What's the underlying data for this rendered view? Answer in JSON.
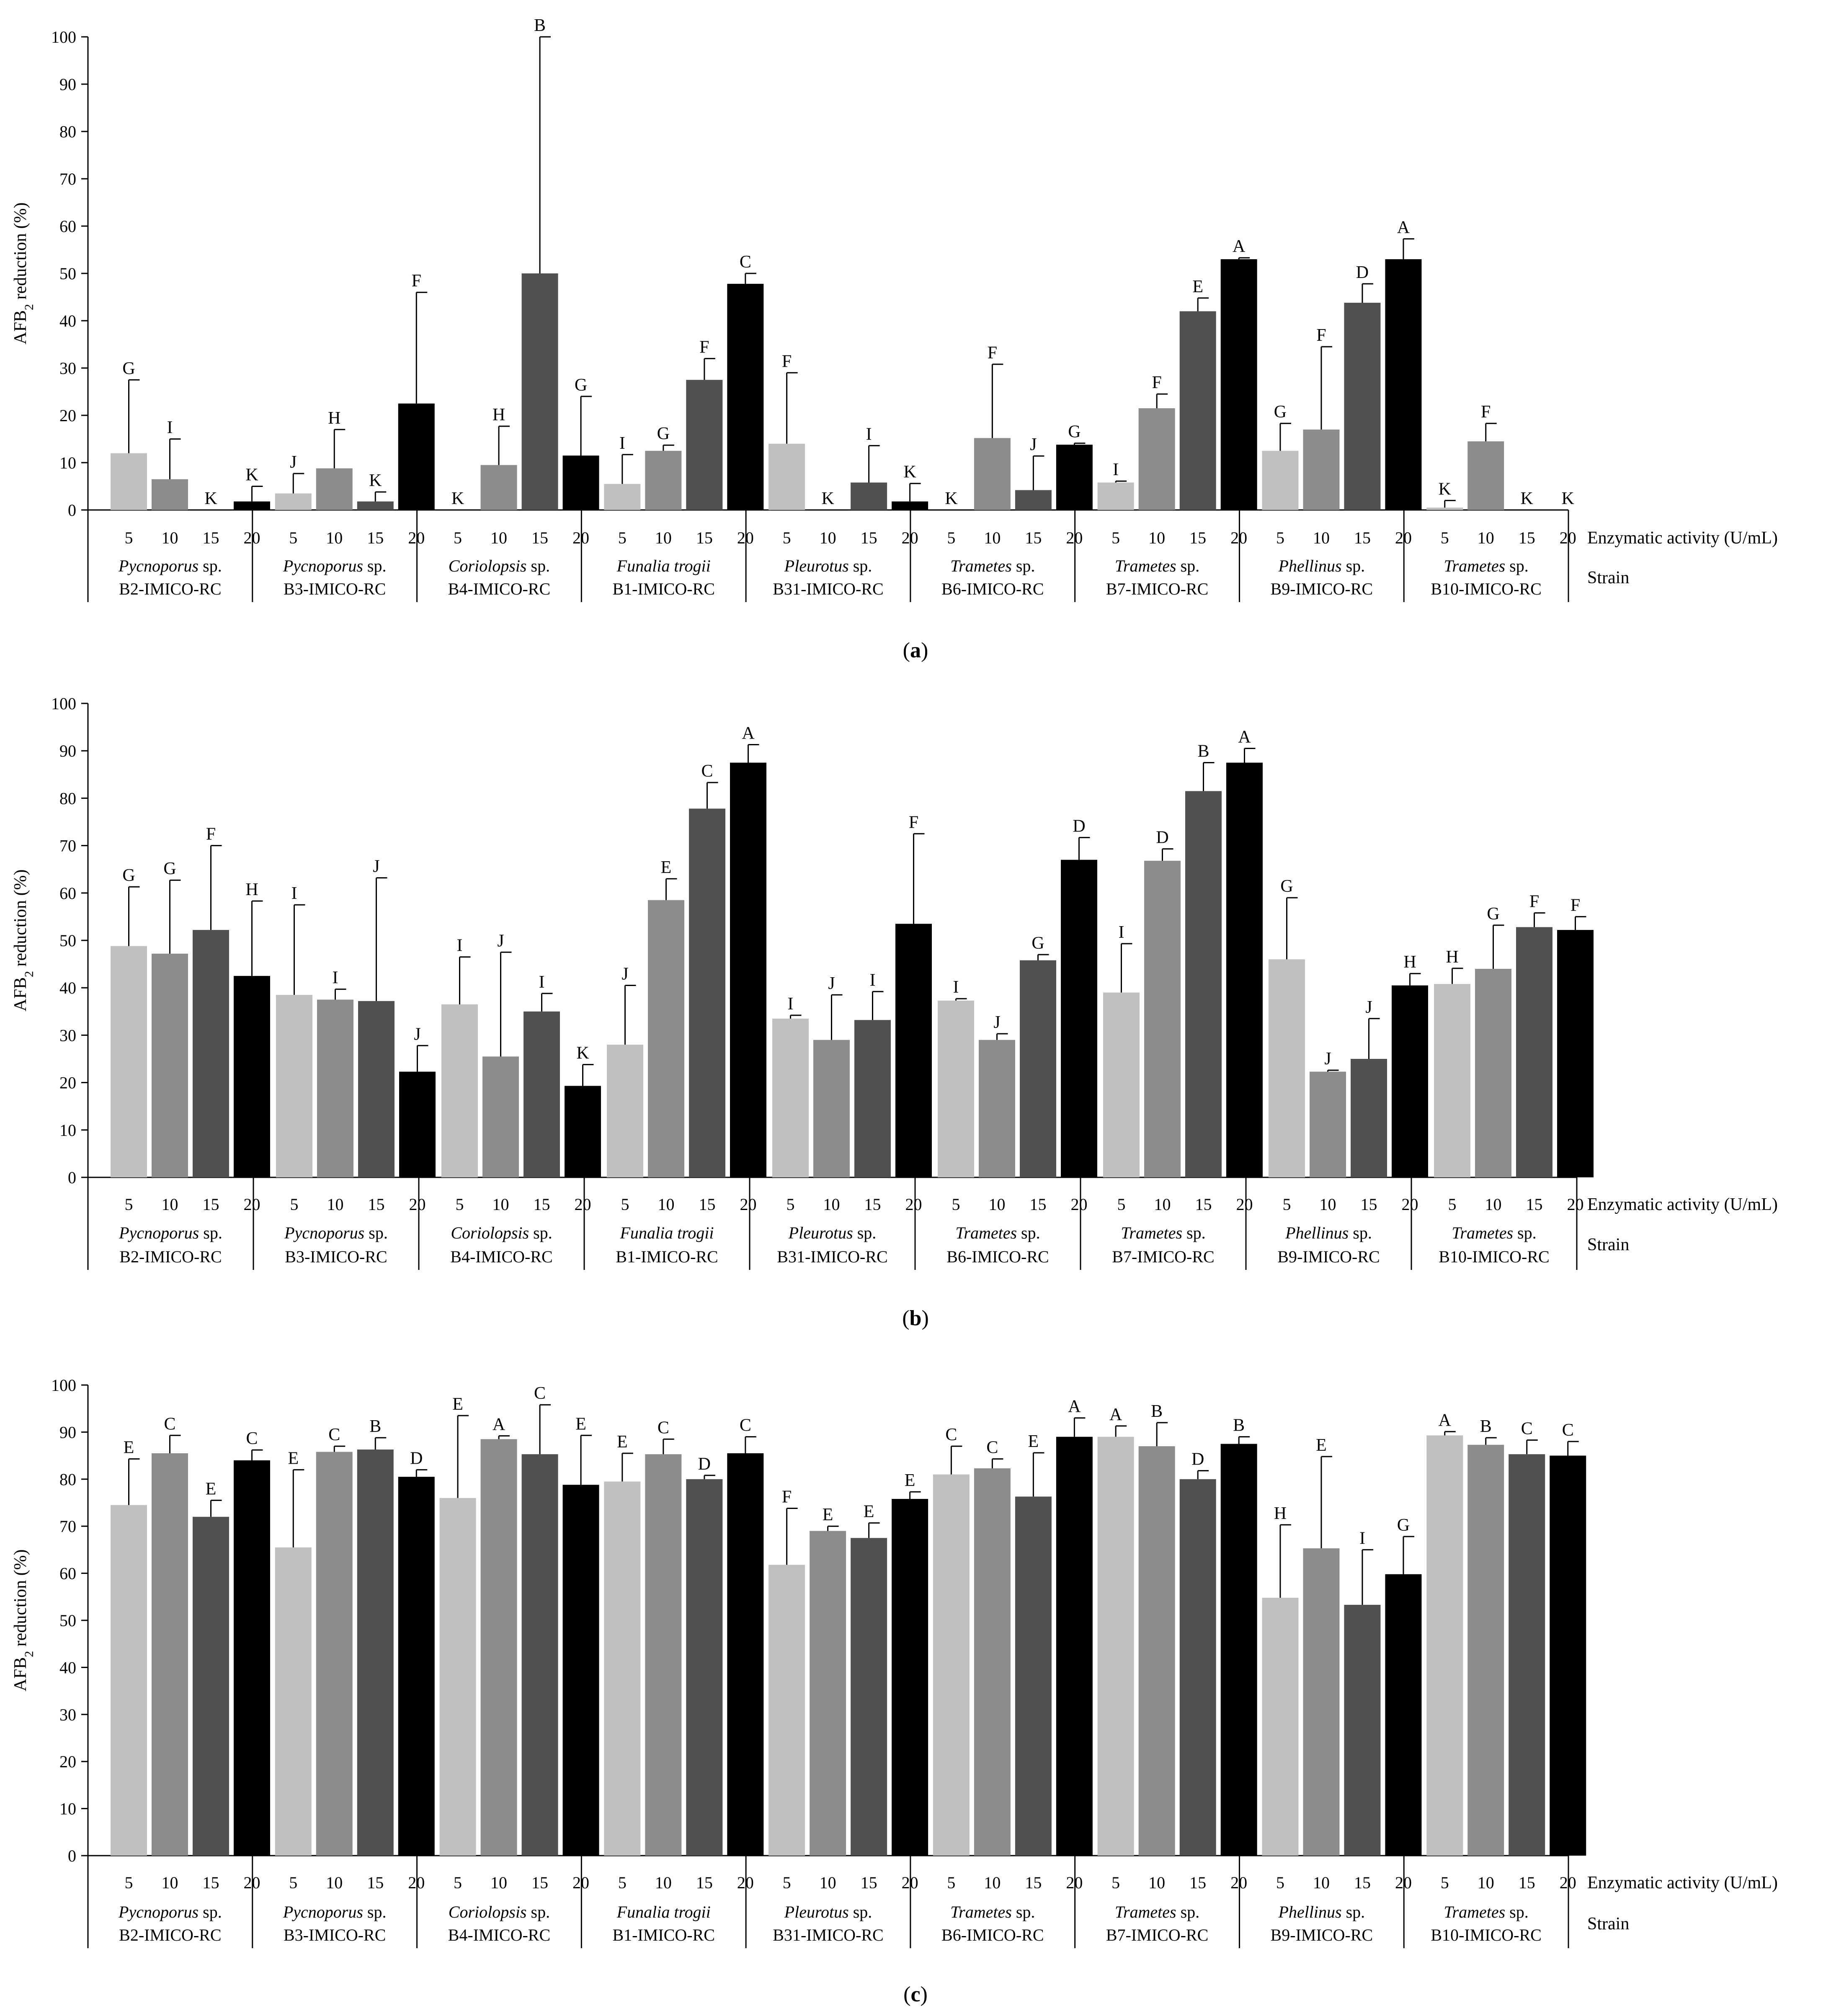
{
  "shared": {
    "concentrations": [
      "5",
      "10",
      "15",
      "20"
    ],
    "strains": [
      {
        "genus": "Pycnoporus",
        "suffix": " sp.",
        "italic_only": false,
        "code": "B2-IMICO-RC"
      },
      {
        "genus": "Pycnoporus",
        "suffix": " sp.",
        "italic_only": false,
        "code": "B3-IMICO-RC"
      },
      {
        "genus": "Coriolopsis",
        "suffix": " sp.",
        "italic_only": false,
        "code": "B4-IMICO-RC"
      },
      {
        "genus": "Funalia trogii",
        "suffix": "",
        "italic_only": true,
        "code": "B1-IMICO-RC"
      },
      {
        "genus": "Pleurotus",
        "suffix": " sp.",
        "italic_only": false,
        "code": "B31-IMICO-RC"
      },
      {
        "genus": "Trametes",
        "suffix": " sp.",
        "italic_only": false,
        "code": "B6-IMICO-RC"
      },
      {
        "genus": "Trametes",
        "suffix": " sp.",
        "italic_only": false,
        "code": "B7-IMICO-RC"
      },
      {
        "genus": "Phellinus",
        "suffix": " sp.",
        "italic_only": false,
        "code": "B9-IMICO-RC"
      },
      {
        "genus": "Trametes",
        "suffix": " sp.",
        "italic_only": false,
        "code": "B10-IMICO-RC"
      }
    ],
    "x_axis_label": "Enzymatic activity (U/mL)",
    "strain_axis_label": "Strain",
    "y_label_prefix": "AFB",
    "y_label_sub": "2",
    "y_label_suffix": " reduction (%)",
    "y_ticks": [
      0,
      10,
      20,
      30,
      40,
      50,
      60,
      70,
      80,
      90,
      100
    ],
    "bar_colors": {
      "5": "#c0c0c0",
      "10": "#8c8c8c",
      "15": "#505050",
      "20": "#000000"
    }
  },
  "chart_data": [
    {
      "type": "bar",
      "panel": "(a)",
      "ylim": [
        0,
        100
      ],
      "ylabel": "AFB2 reduction (%)",
      "xlabel": "Enzymatic activity (U/mL)",
      "values": [
        [
          12,
          6.5,
          0,
          1.8
        ],
        [
          3.5,
          8.8,
          1.8,
          22.5
        ],
        [
          0,
          9.5,
          50,
          11.5
        ],
        [
          5.5,
          12.5,
          27.5,
          47.8
        ],
        [
          14,
          0,
          5.8,
          1.8
        ],
        [
          0,
          15.2,
          4.2,
          13.8
        ],
        [
          5.8,
          21.5,
          42,
          53
        ],
        [
          12.5,
          17,
          43.8,
          53
        ],
        [
          0.5,
          14.5,
          0,
          0
        ]
      ],
      "errors": [
        [
          15.5,
          8.5,
          0,
          3.2
        ],
        [
          4.2,
          8.2,
          2,
          23.5
        ],
        [
          0,
          8.2,
          50,
          12.5
        ],
        [
          6.2,
          1.2,
          4.5,
          2.2
        ],
        [
          15,
          0,
          7.8,
          3.8
        ],
        [
          0,
          15.6,
          7.2,
          0.3
        ],
        [
          0.3,
          3,
          2.8,
          0.3
        ],
        [
          5.8,
          17.5,
          4,
          4.3
        ],
        [
          1.5,
          3.8,
          0,
          0
        ]
      ],
      "letters": [
        [
          "G",
          "I",
          "K",
          "K"
        ],
        [
          "J",
          "H",
          "K",
          "F"
        ],
        [
          "K",
          "H",
          "B",
          "G"
        ],
        [
          "I",
          "G",
          "F",
          "C"
        ],
        [
          "F",
          "K",
          "I",
          "K"
        ],
        [
          "K",
          "F",
          "J",
          "G"
        ],
        [
          "I",
          "F",
          "E",
          "A"
        ],
        [
          "G",
          "F",
          "D",
          "A"
        ],
        [
          "K",
          "F",
          "K",
          "K"
        ]
      ]
    },
    {
      "type": "bar",
      "panel": "(b)",
      "ylim": [
        0,
        100
      ],
      "ylabel": "AFB2 reduction (%)",
      "xlabel": "Enzymatic activity (U/mL)",
      "values": [
        [
          48.8,
          47.2,
          52.2,
          42.5
        ],
        [
          38.5,
          37.5,
          37.2,
          22.3
        ],
        [
          36.5,
          25.5,
          35,
          19.3
        ],
        [
          28,
          58.5,
          77.8,
          87.5
        ],
        [
          33.5,
          29,
          33.2,
          53.5
        ],
        [
          37.3,
          29,
          45.8,
          67
        ],
        [
          39,
          66.8,
          81.5,
          87.5
        ],
        [
          46,
          22.3,
          25,
          40.5
        ],
        [
          40.8,
          44,
          52.8,
          52.2
        ]
      ],
      "errors": [
        [
          12.5,
          15.5,
          17.8,
          15.8
        ],
        [
          19,
          2.2,
          26,
          5.5
        ],
        [
          10,
          22,
          3.8,
          4.5
        ],
        [
          12.5,
          4.5,
          5.5,
          3.8
        ],
        [
          0.7,
          9.5,
          6,
          19
        ],
        [
          0.4,
          1.3,
          1.2,
          4.7
        ],
        [
          10.3,
          2.5,
          6,
          3
        ],
        [
          13,
          0.3,
          8.5,
          2.5
        ],
        [
          3.3,
          9.2,
          3,
          2.8
        ]
      ],
      "letters": [
        [
          "G",
          "G",
          "F",
          "H"
        ],
        [
          "I",
          "I",
          "J",
          "J"
        ],
        [
          "I",
          "J",
          "I",
          "K"
        ],
        [
          "J",
          "E",
          "C",
          "A"
        ],
        [
          "I",
          "J",
          "I",
          "F"
        ],
        [
          "I",
          "J",
          "G",
          "D"
        ],
        [
          "I",
          "D",
          "B",
          "A"
        ],
        [
          "G",
          "J",
          "J",
          "H"
        ],
        [
          "H",
          "G",
          "F",
          "F"
        ]
      ]
    },
    {
      "type": "bar",
      "panel": "(c)",
      "ylim": [
        0,
        100
      ],
      "ylabel": "AFB2 reduction (%)",
      "xlabel": "Enzymatic activity (U/mL)",
      "values": [
        [
          74.5,
          85.5,
          72,
          84
        ],
        [
          65.5,
          85.8,
          86.3,
          80.5
        ],
        [
          76,
          88.5,
          85.3,
          78.8
        ],
        [
          79.5,
          85.3,
          80,
          85.5
        ],
        [
          61.8,
          69,
          67.5,
          75.8
        ],
        [
          81,
          82.3,
          76.3,
          89
        ],
        [
          89,
          87,
          80,
          87.5
        ],
        [
          54.8,
          65.3,
          53.3,
          59.8
        ],
        [
          89.3,
          87.3,
          85.3,
          85
        ]
      ],
      "errors": [
        [
          9.8,
          3.8,
          3.5,
          2.2
        ],
        [
          16.5,
          1.2,
          2.5,
          1.5
        ],
        [
          17.5,
          0.7,
          10.5,
          10.5
        ],
        [
          6,
          3.2,
          0.8,
          3.5
        ],
        [
          12,
          1,
          3.2,
          1.5
        ],
        [
          6,
          2,
          9.3,
          4
        ],
        [
          2.3,
          5,
          1.8,
          1.5
        ],
        [
          15.5,
          19.5,
          11.7,
          8
        ],
        [
          0.8,
          1.5,
          3,
          3
        ]
      ],
      "letters": [
        [
          "E",
          "C",
          "E",
          "C"
        ],
        [
          "E",
          "C",
          "B",
          "D"
        ],
        [
          "E",
          "A",
          "C",
          "E"
        ],
        [
          "E",
          "C",
          "D",
          "C"
        ],
        [
          "F",
          "E",
          "E",
          "E"
        ],
        [
          "C",
          "C",
          "E",
          "A"
        ],
        [
          "A",
          "B",
          "D",
          "B"
        ],
        [
          "H",
          "E",
          "I",
          "G"
        ],
        [
          "A",
          "B",
          "C",
          "C"
        ]
      ]
    }
  ]
}
